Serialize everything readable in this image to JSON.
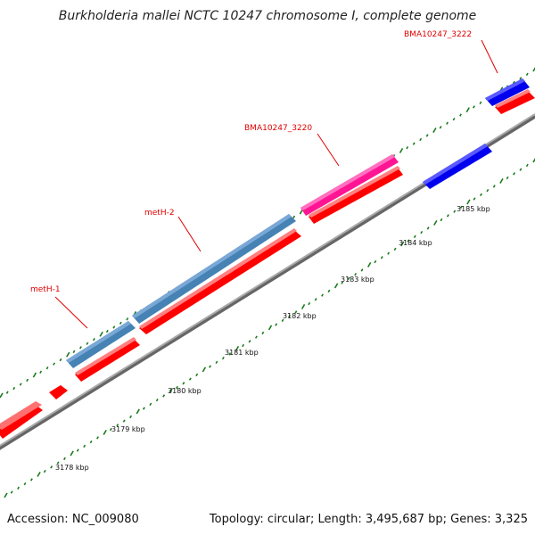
{
  "title": "Burkholderia mallei NCTC 10247 chromosome I, complete genome",
  "footer": {
    "accession": "Accession: NC_009080",
    "summary": "Topology: circular; Length: 3,495,687 bp; Genes: 3,325"
  },
  "scale": {
    "ticks": [
      "3178 kbp",
      "3179 kbp",
      "3180 kbp",
      "3181 kbp",
      "3182 kbp",
      "3183 kbp",
      "3184 kbp",
      "3185 kbp"
    ]
  },
  "genes": [
    {
      "label": "metH-1",
      "color": "#4682b4",
      "strand": "forward"
    },
    {
      "label": "metH-2",
      "color": "#4682b4",
      "strand": "forward"
    },
    {
      "label": "BMA10247_3220",
      "color": "#ff1493",
      "strand": "forward"
    },
    {
      "label": "BMA10247_3222",
      "color": "#0000ee",
      "strand": "forward"
    }
  ],
  "colors": {
    "backbone": "#888888",
    "cds": "#ff0000",
    "ticks": "#1a7a1a",
    "reverse_gene": "#0000ee"
  }
}
